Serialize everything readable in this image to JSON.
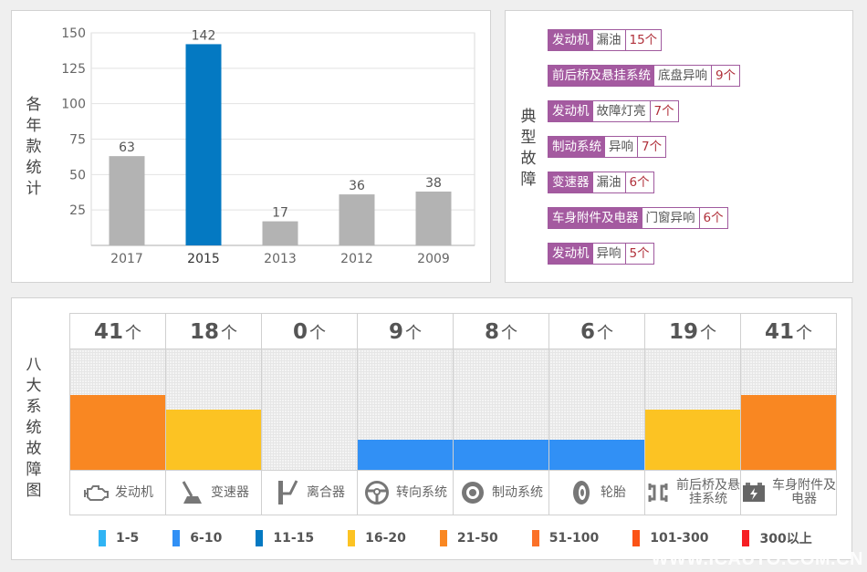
{
  "year_panel": {
    "vertical_label": "各年款统计"
  },
  "faults_panel": {
    "vertical_label": "典型故障",
    "items": [
      {
        "system": "发动机",
        "fault": "漏油",
        "count": "15个"
      },
      {
        "system": "前后桥及悬挂系统",
        "fault": "底盘异响",
        "count": "9个"
      },
      {
        "system": "发动机",
        "fault": "故障灯亮",
        "count": "7个"
      },
      {
        "system": "制动系统",
        "fault": "异响",
        "count": "7个"
      },
      {
        "system": "变速器",
        "fault": "漏油",
        "count": "6个"
      },
      {
        "system": "车身附件及电器",
        "fault": "门窗异响",
        "count": "6个"
      },
      {
        "system": "发动机",
        "fault": "异响",
        "count": "5个"
      }
    ]
  },
  "systems_panel": {
    "vertical_label": "八大系统故障图",
    "unit": "个",
    "systems": [
      {
        "name": "发动机",
        "count": 41,
        "icon": "engine-icon",
        "color": "#f98722"
      },
      {
        "name": "变速器",
        "count": 18,
        "icon": "gear-shifter-icon",
        "color": "#fcc323"
      },
      {
        "name": "离合器",
        "count": 0,
        "icon": "clutch-pedal-icon",
        "color": "#f4f4f4"
      },
      {
        "name": "转向系统",
        "count": 9,
        "icon": "steering-wheel-icon",
        "color": "#3190f5"
      },
      {
        "name": "制动系统",
        "count": 8,
        "icon": "brake-disc-icon",
        "color": "#3190f5"
      },
      {
        "name": "轮胎",
        "count": 6,
        "icon": "tire-icon",
        "color": "#3190f5"
      },
      {
        "name": "前后桥及悬挂系统",
        "count": 19,
        "icon": "axle-icon",
        "color": "#fcc323"
      },
      {
        "name": "车身附件及电器",
        "count": 41,
        "icon": "battery-icon",
        "color": "#f98722"
      }
    ],
    "legend": [
      {
        "label": "1-5",
        "color": "#30b4f4"
      },
      {
        "label": "6-10",
        "color": "#3190f5"
      },
      {
        "label": "11-15",
        "color": "#0479c2"
      },
      {
        "label": "16-20",
        "color": "#fcc323"
      },
      {
        "label": "21-50",
        "color": "#f98722"
      },
      {
        "label": "51-100",
        "color": "#fb7128"
      },
      {
        "label": "101-300",
        "color": "#fb5316"
      },
      {
        "label": "300以上",
        "color": "#f61f24"
      }
    ]
  },
  "watermark": "WWW.ICAUTO.COM.CN",
  "chart_data": [
    {
      "type": "bar",
      "title": "各年款统计",
      "xlabel": "",
      "ylabel": "各年款统计",
      "categories": [
        "2017",
        "2015",
        "2013",
        "2012",
        "2009"
      ],
      "values": [
        63,
        142,
        17,
        36,
        38
      ],
      "highlight": "2015",
      "colors": {
        "default": "#b3b3b3",
        "highlight": "#0479c2"
      },
      "yticks": [
        25,
        50,
        75,
        100,
        125,
        150
      ],
      "ylim": [
        0,
        150
      ],
      "grid": true
    },
    {
      "type": "bar",
      "title": "八大系统故障图",
      "categories": [
        "发动机",
        "变速器",
        "离合器",
        "转向系统",
        "制动系统",
        "轮胎",
        "前后桥及悬挂系统",
        "车身附件及电器"
      ],
      "values": [
        41,
        18,
        0,
        9,
        8,
        6,
        19,
        41
      ],
      "legend_bins": [
        "1-5",
        "6-10",
        "11-15",
        "16-20",
        "21-50",
        "51-100",
        "101-300",
        "300以上"
      ],
      "legend_position": "bottom"
    },
    {
      "type": "table",
      "title": "典型故障",
      "columns": [
        "system",
        "fault",
        "count"
      ],
      "rows": [
        [
          "发动机",
          "漏油",
          15
        ],
        [
          "前后桥及悬挂系统",
          "底盘异响",
          9
        ],
        [
          "发动机",
          "故障灯亮",
          7
        ],
        [
          "制动系统",
          "异响",
          7
        ],
        [
          "变速器",
          "漏油",
          6
        ],
        [
          "车身附件及电器",
          "门窗异响",
          6
        ],
        [
          "发动机",
          "异响",
          5
        ]
      ]
    }
  ]
}
